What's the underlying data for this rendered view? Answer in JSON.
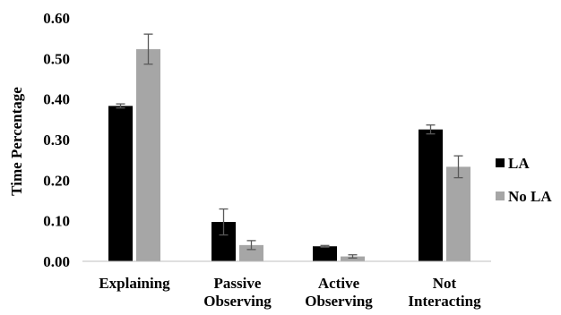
{
  "chart_data": {
    "type": "bar",
    "title": "",
    "xlabel": "",
    "ylabel": "Time Percentage",
    "ylim": [
      0,
      0.6
    ],
    "yticks": [
      "0.00",
      "0.10",
      "0.20",
      "0.30",
      "0.40",
      "0.50",
      "0.60"
    ],
    "grid": false,
    "legend_position": "right",
    "categories": [
      [
        "Explaining"
      ],
      [
        "Passive",
        "Observing"
      ],
      [
        "Active",
        "Observing"
      ],
      [
        "Not",
        "Interacting"
      ]
    ],
    "series": [
      {
        "name": "LA",
        "color": "#000000",
        "values": [
          0.383,
          0.097,
          0.037,
          0.325
        ],
        "errors": [
          0.005,
          0.032,
          0.002,
          0.011
        ]
      },
      {
        "name": "No LA",
        "color": "#a6a6a6",
        "values": [
          0.523,
          0.04,
          0.012,
          0.233
        ],
        "errors": [
          0.037,
          0.011,
          0.004,
          0.027
        ]
      }
    ]
  }
}
